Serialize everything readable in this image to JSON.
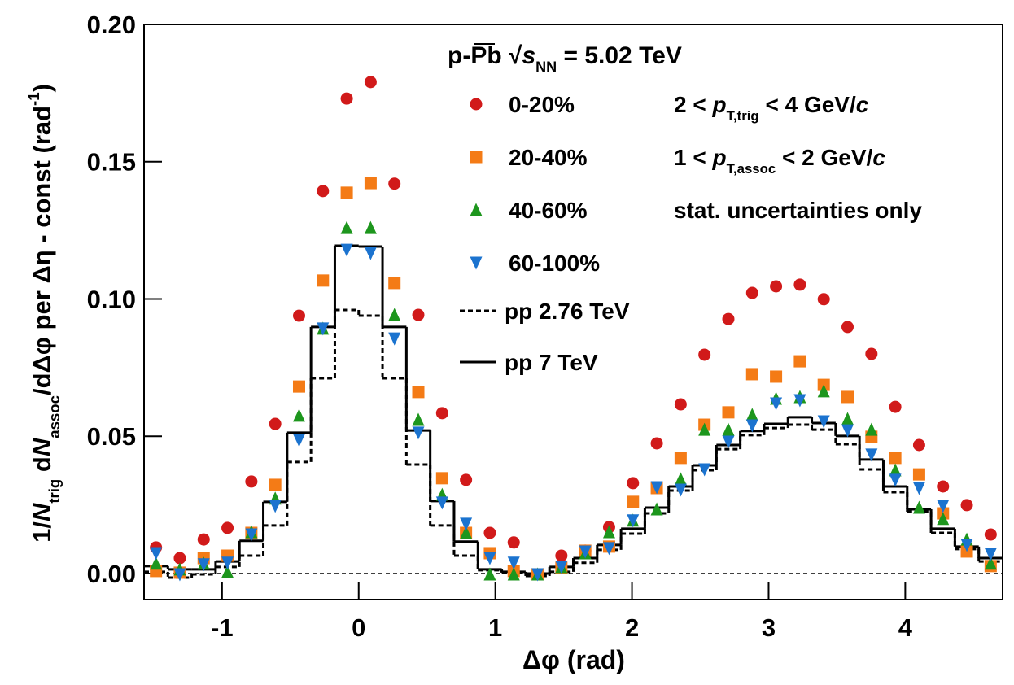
{
  "chart_data": {
    "type": "scatter",
    "title": [
      {
        "text": "p-Pb "
      },
      {
        "text": "√"
      },
      {
        "text": "s",
        "italic": true
      },
      {
        "text": "NN",
        "sub": true
      },
      {
        "text": " = 5.02 TeV"
      }
    ],
    "xlabel": "Δφ (rad)",
    "ylabel": [
      {
        "text": "1/"
      },
      {
        "text": "N",
        "italic": true
      },
      {
        "text": "trig",
        "sub": true
      },
      {
        "text": " d"
      },
      {
        "text": "N",
        "italic": true
      },
      {
        "text": "assoc",
        "sub": true
      },
      {
        "text": "/dΔφ per Δη - const (rad"
      },
      {
        "text": "-1",
        "sup": true
      },
      {
        "text": ")"
      }
    ],
    "annotations": [
      [
        {
          "text": "2 < "
        },
        {
          "text": "p",
          "italic": true
        },
        {
          "text": "T,trig",
          "sub": true
        },
        {
          "text": " < 4 GeV/"
        },
        {
          "text": "c",
          "italic": true
        }
      ],
      [
        {
          "text": "1 < "
        },
        {
          "text": "p",
          "italic": true
        },
        {
          "text": "T,assoc",
          "sub": true
        },
        {
          "text": " < 2 GeV/"
        },
        {
          "text": "c",
          "italic": true
        }
      ],
      [
        {
          "text": "stat. uncertainties only"
        }
      ]
    ],
    "xlim": [
      -1.5708,
      4.7124
    ],
    "ylim": [
      -0.0095,
      0.2
    ],
    "xticks": [
      -1,
      0,
      1,
      2,
      3,
      4
    ],
    "yticks": [
      {
        "value": 0,
        "label": "0.00"
      },
      {
        "value": 0.05,
        "label": "0.05"
      },
      {
        "value": 0.1,
        "label": "0.10"
      },
      {
        "value": 0.15,
        "label": "0.15"
      },
      {
        "value": 0.2,
        "label": "0.20"
      }
    ],
    "zero_line": true,
    "x": [
      -1.4835,
      -1.309,
      -1.1345,
      -0.96,
      -0.7854,
      -0.6109,
      -0.4363,
      -0.2618,
      -0.0873,
      0.0873,
      0.2618,
      0.4363,
      0.6109,
      0.7854,
      0.96,
      1.1345,
      1.309,
      1.4835,
      1.6581,
      1.8326,
      2.0071,
      2.1817,
      2.3562,
      2.5307,
      2.7053,
      2.8798,
      3.0543,
      3.2289,
      3.4034,
      3.5779,
      3.7525,
      3.927,
      4.1015,
      4.2761,
      4.4506,
      4.6251
    ],
    "series": [
      {
        "name": "0-20%",
        "color": "#d11a1a",
        "marker": "circle",
        "values": [
          0.0095,
          0.0056,
          0.0124,
          0.0166,
          0.0335,
          0.0545,
          0.0939,
          0.1393,
          0.173,
          0.179,
          0.142,
          0.0942,
          0.0584,
          0.0341,
          0.0148,
          0.0113,
          -0.0003,
          0.0065,
          0.0083,
          0.0169,
          0.0329,
          0.0474,
          0.0616,
          0.0797,
          0.0927,
          0.1022,
          0.1046,
          0.1052,
          0.0999,
          0.0898,
          0.08,
          0.0607,
          0.0468,
          0.0317,
          0.0249,
          0.0142
        ]
      },
      {
        "name": "20-40%",
        "color": "#f47b16",
        "marker": "square",
        "values": [
          0.0009,
          0.0003,
          0.0056,
          0.0065,
          0.0148,
          0.0323,
          0.0681,
          0.1067,
          0.1387,
          0.1422,
          0.1058,
          0.0661,
          0.0347,
          0.0148,
          0.0074,
          0.0009,
          -0.0003,
          0.0021,
          0.0083,
          0.0098,
          0.0261,
          0.0311,
          0.0421,
          0.0542,
          0.0587,
          0.0726,
          0.0717,
          0.0773,
          0.0687,
          0.0643,
          0.0498,
          0.0421,
          0.0361,
          0.0219,
          0.008,
          0.0027
        ]
      },
      {
        "name": "40-60%",
        "color": "#1d961d",
        "marker": "triangle-up",
        "values": [
          0.0036,
          0.0015,
          0.0036,
          0.0006,
          0.0151,
          0.0273,
          0.0575,
          0.0892,
          0.1259,
          0.1259,
          0.0942,
          0.056,
          0.0287,
          0.0148,
          -0.0003,
          -0.0003,
          -0.0003,
          0.0024,
          0.0074,
          0.0151,
          0.0193,
          0.0234,
          0.0344,
          0.0524,
          0.0524,
          0.0578,
          0.0637,
          0.0643,
          0.0664,
          0.0563,
          0.0524,
          0.0376,
          0.024,
          0.0199,
          0.0124,
          0.0036
        ]
      },
      {
        "name": "60-100%",
        "color": "#1b73cf",
        "marker": "triangle-down",
        "values": [
          0.0074,
          -0.0003,
          0.0033,
          0.0039,
          0.0142,
          0.0246,
          0.0486,
          0.0892,
          0.1179,
          0.1167,
          0.0856,
          0.0513,
          0.0258,
          0.0181,
          0.0056,
          0.0039,
          -0.0003,
          0.0024,
          0.008,
          0.0092,
          0.0193,
          0.0314,
          0.0305,
          0.0379,
          0.048,
          0.0539,
          0.0619,
          0.0631,
          0.0554,
          0.0521,
          0.0433,
          0.0341,
          0.0311,
          0.0246,
          0.0104,
          0.0071
        ]
      }
    ],
    "bins": [
      -1.5708,
      -1.3963,
      -1.2217,
      -1.0472,
      -0.8727,
      -0.6981,
      -0.5236,
      -0.3491,
      -0.1745,
      0,
      0.1745,
      0.3491,
      0.5236,
      0.6981,
      0.8727,
      1.0472,
      1.2217,
      1.3963,
      1.5708,
      1.7453,
      1.9199,
      2.0944,
      2.2689,
      2.4435,
      2.618,
      2.7925,
      2.9671,
      3.1416,
      3.3161,
      3.4907,
      3.6652,
      3.8397,
      4.0143,
      4.1888,
      4.3633,
      4.5379,
      4.7124
    ],
    "step_series": [
      {
        "name": "pp 2.76 TeV",
        "color": "#000000",
        "dashed": true,
        "values": [
          0.0006,
          -0.0015,
          -0.0003,
          0.0024,
          0.0065,
          0.0175,
          0.0406,
          0.0711,
          0.096,
          0.0939,
          0.0711,
          0.0397,
          0.0175,
          0.0065,
          0.0012,
          0.0003,
          -0.0009,
          0.0006,
          0.0039,
          0.0086,
          0.0145,
          0.0219,
          0.0302,
          0.0376,
          0.0453,
          0.0504,
          0.053,
          0.0542,
          0.0524,
          0.0471,
          0.0379,
          0.0296,
          0.0225,
          0.0148,
          0.0089,
          0.0044
        ]
      },
      {
        "name": "pp 7 TeV",
        "color": "#000000",
        "dashed": false,
        "values": [
          0.0027,
          0.0015,
          0.0015,
          0.0044,
          0.0119,
          0.0261,
          0.0513,
          0.0898,
          0.1194,
          0.1191,
          0.0898,
          0.0521,
          0.0264,
          0.0116,
          0.0015,
          0.0006,
          0,
          0.0024,
          0.0056,
          0.0104,
          0.0163,
          0.024,
          0.0317,
          0.0394,
          0.0468,
          0.0519,
          0.0545,
          0.0569,
          0.0548,
          0.0501,
          0.0415,
          0.0317,
          0.0234,
          0.0163,
          0.0098,
          0.0056
        ]
      }
    ]
  }
}
